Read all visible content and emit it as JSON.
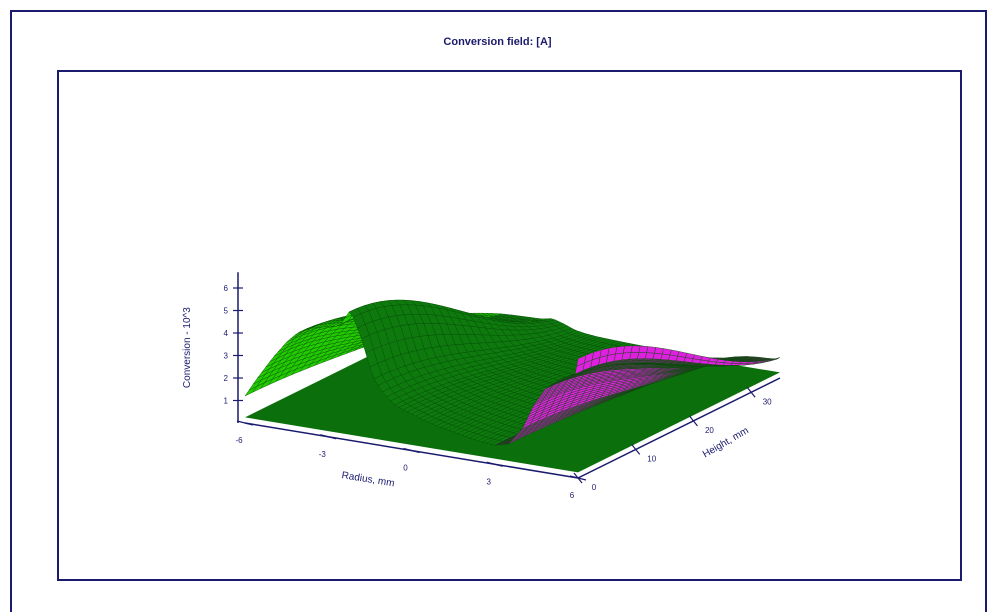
{
  "chart_data": {
    "type": "surface3d",
    "title": "Conversion field: [A]",
    "xlabel": "Radius, mm",
    "ylabel": "Height, mm",
    "zlabel": "Conversion - 10^3",
    "x_ticks": [
      "-6",
      "-3",
      "0",
      "3",
      "6"
    ],
    "y_ticks": [
      "0",
      "10",
      "20",
      "30"
    ],
    "z_ticks": [
      "1",
      "2",
      "3",
      "4",
      "5",
      "6"
    ],
    "x_range": [
      -6,
      6
    ],
    "y_range": [
      0,
      35
    ],
    "z_range": [
      0,
      6.5
    ],
    "series": [
      {
        "color": "#22cc00",
        "shade": "#0e7a0e",
        "radius_profile": [
          [
            -6.0,
            1.2
          ],
          [
            -5.6,
            2.0
          ],
          [
            -5.0,
            3.1
          ],
          [
            -4.5,
            3.9
          ],
          [
            -4.1,
            4.4
          ],
          [
            -3.6,
            4.7
          ],
          [
            -3.0,
            4.9
          ],
          [
            -2.6,
            5.0
          ],
          [
            -2.2,
            5.8
          ],
          [
            -1.8,
            4.6
          ],
          [
            -1.4,
            3.0
          ],
          [
            -1.0,
            2.3
          ],
          [
            -0.6,
            1.9
          ],
          [
            -0.2,
            1.7
          ],
          [
            0.4,
            1.45
          ],
          [
            1.0,
            1.25
          ],
          [
            1.8,
            1.05
          ],
          [
            2.5,
            0.9
          ],
          [
            3.0,
            0.85
          ]
        ]
      },
      {
        "color": "#e020e0",
        "shade": "#8a0a8a",
        "radius_profile": [
          [
            3.0,
            0.85
          ],
          [
            3.5,
            1.0
          ],
          [
            4.0,
            1.8
          ],
          [
            4.4,
            2.9
          ],
          [
            4.8,
            3.7
          ],
          [
            5.2,
            4.1
          ],
          [
            5.6,
            4.3
          ],
          [
            5.9,
            4.6
          ],
          [
            6.0,
            5.3
          ]
        ]
      }
    ]
  }
}
